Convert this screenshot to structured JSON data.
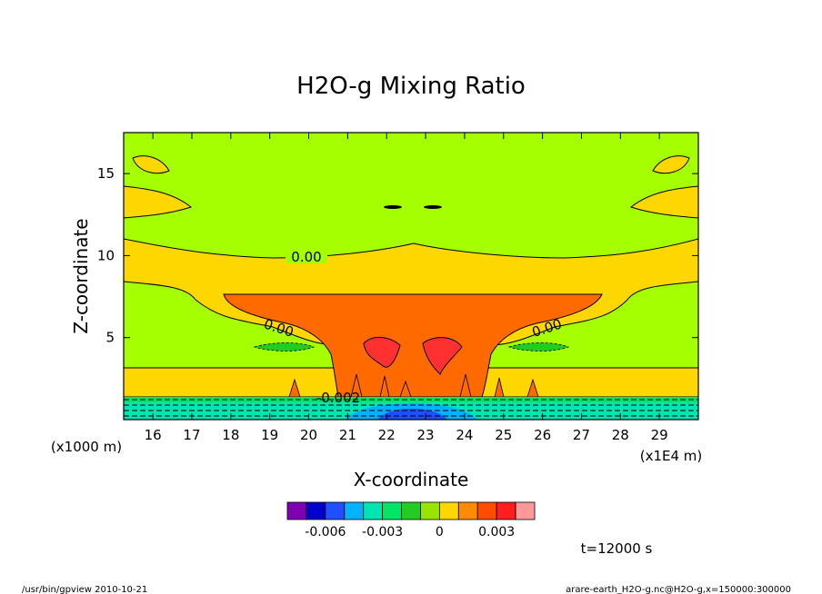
{
  "chart_data": {
    "type": "contour",
    "title": "H2O-g Mixing Ratio",
    "xlabel": "X-coordinate",
    "ylabel": "Z-coordinate",
    "x_unit_label": "(x1E4 m)",
    "y_unit_label": "(x1000 m)",
    "xlim": [
      15.25,
      30
    ],
    "ylim": [
      0,
      17.5
    ],
    "x_ticks": [
      16,
      17,
      18,
      19,
      20,
      21,
      22,
      23,
      24,
      25,
      26,
      27,
      28,
      29
    ],
    "y_ticks": [
      5,
      10,
      15
    ],
    "contour_labels": [
      "0.00",
      "0.00",
      "0.00",
      "-0.002"
    ],
    "colorbar": {
      "colors": [
        "#7f00b2",
        "#0000cc",
        "#1f4fff",
        "#00b2ff",
        "#00e5b2",
        "#00e566",
        "#22cc22",
        "#99e500",
        "#ffd700",
        "#ff8c00",
        "#ff4c00",
        "#ff1e1e",
        "#ff9999"
      ],
      "tick_labels": [
        "-0.006",
        "-0.003",
        "0",
        "0.003"
      ]
    },
    "colors": {
      "background_field": "#a6ff00",
      "band_positive": "#ffd700",
      "core_positive": "#ff6a00",
      "peak_positive": "#ff3030",
      "near_surface": "#00e5a0"
    }
  },
  "annotations": {
    "time_label": "t=12000 s",
    "footer_left": "/usr/bin/gpview  2010-10-21",
    "footer_right": "arare-earth_H2O-g.nc@H2O-g,x=150000:300000"
  }
}
